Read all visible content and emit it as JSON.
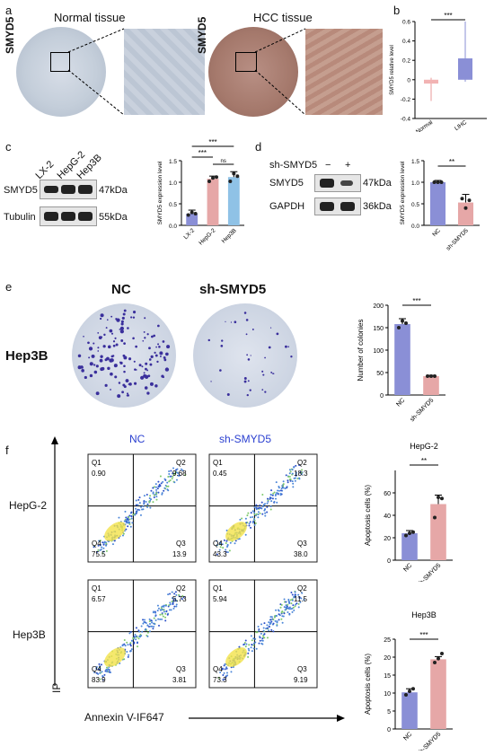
{
  "panels": {
    "a": {
      "label": "a",
      "left_title": "Normal tissue",
      "right_title": "HCC tissue",
      "ylabel_left": "SMYD5",
      "ylabel_right": "SMYD5"
    },
    "b": {
      "label": "b",
      "stars": "***",
      "ylabel": "SMYD5 relative level",
      "xticks": [
        "Normal",
        "LIHC"
      ],
      "yticks": [
        "0.6",
        "0.4",
        "0.2",
        "0",
        "-0.2",
        "-0.4"
      ]
    },
    "c": {
      "label": "c",
      "lanes": [
        "LX-2",
        "HepG-2",
        "Hep3B"
      ],
      "bands": [
        "SMYD5",
        "Tubulin"
      ],
      "kda": [
        "47kDa",
        "55kDa"
      ],
      "ylabel": "SMYD5 expression level",
      "xticks": [
        "LX-2",
        "HepG-2",
        "Hep3B"
      ],
      "stars_top": "***",
      "stars_mid": "***",
      "ns": "ns",
      "yticks": [
        "1.5",
        "1.0",
        "0.5",
        "0.0"
      ]
    },
    "d": {
      "label": "d",
      "treat": "sh-SMYD5",
      "minus": "−",
      "plus": "+",
      "bands": [
        "SMYD5",
        "GAPDH"
      ],
      "kda": [
        "47kDa",
        "36kDa"
      ],
      "ylabel": "SMYD5 expression level",
      "xticks": [
        "NC",
        "sh-SMYD5"
      ],
      "stars": "**",
      "yticks": [
        "1.5",
        "1.0",
        "0.5",
        "0.0"
      ]
    },
    "e": {
      "label": "e",
      "col1": "NC",
      "col2": "sh-SMYD5",
      "row": "Hep3B",
      "ylabel": "Number of colonies",
      "xticks": [
        "NC",
        "sh-SMYD5"
      ],
      "stars": "***",
      "yticks": [
        "200",
        "150",
        "100",
        "50",
        "0"
      ]
    },
    "f": {
      "label": "f",
      "col1": "NC",
      "col2": "sh-SMYD5",
      "row1": "HepG-2",
      "row2": "Hep3B",
      "xaxis": "Annexin V-IF647",
      "yaxis": "IP",
      "quads": [
        {
          "q1": "Q1",
          "v1": "0.90",
          "q2": "Q2",
          "v2": "9.68",
          "q3": "Q3",
          "v3": "13.9",
          "q4": "Q4",
          "v4": "75.5"
        },
        {
          "q1": "Q1",
          "v1": "0.45",
          "q2": "Q2",
          "v2": "18.3",
          "q3": "Q3",
          "v3": "38.0",
          "q4": "Q4",
          "v4": "43.3"
        },
        {
          "q1": "Q1",
          "v1": "6.57",
          "q2": "Q2",
          "v2": "5.73",
          "q3": "Q3",
          "v3": "3.81",
          "q4": "Q4",
          "v4": "83.9"
        },
        {
          "q1": "Q1",
          "v1": "5.94",
          "q2": "Q2",
          "v2": "11.5",
          "q3": "Q3",
          "v3": "9.19",
          "q4": "Q4",
          "v4": "73.3"
        }
      ],
      "bar1": {
        "title": "HepG-2",
        "ylabel": "Apoptosis cells (%)",
        "stars": "**",
        "xticks": [
          "NC",
          "sh-SMYD5"
        ],
        "yticks": [
          "60",
          "40",
          "20",
          "0"
        ]
      },
      "bar2": {
        "title": "Hep3B",
        "ylabel": "Apoptosis cells (%)",
        "stars": "***",
        "xticks": [
          "NC",
          "sh-SMYD5"
        ],
        "yticks": [
          "25",
          "20",
          "15",
          "10",
          "5",
          "0"
        ]
      }
    }
  },
  "chart_data": [
    {
      "type": "bar",
      "categories": [
        "Normal",
        "LIHC"
      ],
      "values": [
        -0.02,
        0.1
      ],
      "ylabel": "SMYD5 relative level",
      "ylim": [
        -0.4,
        0.6
      ]
    },
    {
      "type": "bar",
      "categories": [
        "LX-2",
        "HepG-2",
        "Hep3B"
      ],
      "values": [
        0.27,
        1.08,
        1.12
      ],
      "ylabel": "SMYD5 expression level",
      "ylim": [
        0,
        1.5
      ],
      "colors": [
        "#8a8fd6",
        "#e6a7a7",
        "#8fc2e6"
      ]
    },
    {
      "type": "bar",
      "categories": [
        "NC",
        "sh-SMYD5"
      ],
      "values": [
        1.0,
        0.53
      ],
      "ylabel": "SMYD5 expression level",
      "ylim": [
        0,
        1.5
      ],
      "colors": [
        "#8a8fd6",
        "#e6a7a7"
      ]
    },
    {
      "type": "bar",
      "categories": [
        "NC",
        "sh-SMYD5"
      ],
      "values": [
        158,
        42
      ],
      "ylabel": "Number of colonies",
      "ylim": [
        0,
        200
      ],
      "colors": [
        "#8a8fd6",
        "#e6a7a7"
      ]
    },
    {
      "type": "bar",
      "categories": [
        "NC",
        "sh-SMYD5"
      ],
      "values": [
        24,
        50
      ],
      "title": "HepG-2",
      "ylabel": "Apoptosis cells (%)",
      "ylim": [
        0,
        80
      ],
      "colors": [
        "#8a8fd6",
        "#e6a7a7"
      ]
    },
    {
      "type": "bar",
      "categories": [
        "NC",
        "sh-SMYD5"
      ],
      "values": [
        10.2,
        19.4
      ],
      "title": "Hep3B",
      "ylabel": "Apoptosis cells (%)",
      "ylim": [
        0,
        25
      ],
      "colors": [
        "#8a8fd6",
        "#e6a7a7"
      ]
    }
  ]
}
